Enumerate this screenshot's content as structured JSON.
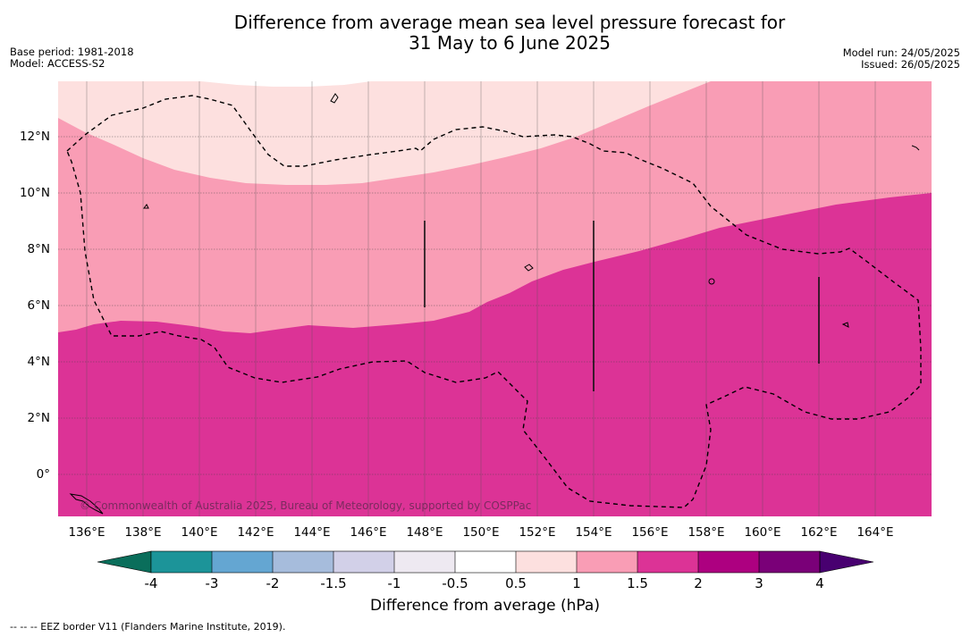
{
  "title_line1": "Difference from average mean sea level pressure forecast for",
  "title_line2": "31 May to 6 June 2025",
  "meta_left": {
    "base_period": "Base period: 1981-2018",
    "model": "Model: ACCESS-S2"
  },
  "meta_right": {
    "model_run": "Model run: 24/05/2025",
    "issued": "Issued: 26/05/2025"
  },
  "y_ticks": [
    "12°N",
    "10°N",
    "8°N",
    "6°N",
    "4°N",
    "2°N",
    "0°"
  ],
  "x_ticks": [
    "136°E",
    "138°E",
    "140°E",
    "142°E",
    "144°E",
    "146°E",
    "148°E",
    "150°E",
    "152°E",
    "154°E",
    "156°E",
    "158°E",
    "160°E",
    "162°E",
    "164°E"
  ],
  "copyright": "© Commonwealth of Australia 2025, Bureau of Meteorology, supported by COSPPac",
  "colorbar": {
    "title": "Difference from average (hPa)",
    "labels": [
      "-4",
      "-3",
      "-2",
      "-1.5",
      "-1",
      "-0.5",
      "0.5",
      "1",
      "1.5",
      "2",
      "3",
      "4"
    ],
    "colors": [
      "#1c9499",
      "#64a6d2",
      "#a6bcdc",
      "#d2d0e8",
      "#eee9f1",
      "#ffffff",
      "#fde0df",
      "#f99db5",
      "#dc3396",
      "#ad0080",
      "#7a0078"
    ],
    "under_color": "#0a6e5b",
    "over_color": "#480070"
  },
  "footnote": "--  --  -- EEZ border V11 (Flanders Marine Institute, 2019).",
  "map_colors": {
    "light_pink": "#fde0df",
    "pink": "#f99db5",
    "magenta": "#dc3396"
  }
}
